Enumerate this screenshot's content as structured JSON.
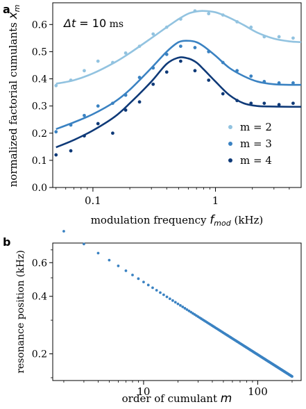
{
  "chart_data": [
    {
      "panel_label": "a",
      "type": "scatter",
      "annotation": "Δt = 10 ms",
      "annotation_parts": {
        "symbol": "Δt",
        "equals": " = 10",
        "unit": " ms"
      },
      "xlabel_text": "modulation frequency ",
      "xlabel_symbol": "f",
      "xlabel_sub": "mod",
      "xlabel_unit": " (kHz)",
      "ylabel_text": "normalized factorial cumulants ",
      "ylabel_symbol": "x",
      "ylabel_sub": "m",
      "xscale": "log",
      "xlim": [
        0.047,
        5.0
      ],
      "ylim": [
        0.0,
        0.68
      ],
      "x_ticks": [
        0.1,
        1
      ],
      "x_tick_labels": [
        "0.1",
        "1"
      ],
      "y_ticks": [
        0.0,
        0.1,
        0.2,
        0.3,
        0.4,
        0.5,
        0.6
      ],
      "y_tick_labels": [
        "0.0",
        "0.1",
        "0.2",
        "0.3",
        "0.4",
        "0.5",
        "0.6"
      ],
      "legend_position": "bottom-right",
      "series": [
        {
          "name": "m = 2",
          "color": "#92c3e0",
          "points": {
            "x": [
              0.05,
              0.066,
              0.085,
              0.11,
              0.145,
              0.185,
              0.24,
              0.31,
              0.4,
              0.52,
              0.68,
              0.88,
              1.15,
              1.5,
              1.95,
              2.5,
              3.3,
              4.3
            ],
            "y": [
              0.375,
              0.395,
              0.43,
              0.465,
              0.46,
              0.495,
              0.52,
              0.565,
              0.59,
              0.62,
              0.65,
              0.64,
              0.635,
              0.61,
              0.59,
              0.555,
              0.555,
              0.55
            ]
          },
          "curve": {
            "x": [
              0.05,
              0.07,
              0.1,
              0.15,
              0.2,
              0.3,
              0.4,
              0.5,
              0.6,
              0.7,
              0.8,
              1.0,
              1.3,
              1.7,
              2.2,
              3.0,
              4.0,
              5.0
            ],
            "y": [
              0.382,
              0.395,
              0.42,
              0.46,
              0.495,
              0.55,
              0.59,
              0.62,
              0.64,
              0.648,
              0.65,
              0.645,
              0.625,
              0.598,
              0.57,
              0.548,
              0.538,
              0.535
            ]
          }
        },
        {
          "name": "m = 3",
          "color": "#3a82c2",
          "points": {
            "x": [
              0.05,
              0.066,
              0.085,
              0.11,
              0.145,
              0.185,
              0.24,
              0.31,
              0.4,
              0.52,
              0.68,
              0.88,
              1.15,
              1.5,
              1.95,
              2.5,
              3.3,
              4.3
            ],
            "y": [
              0.205,
              0.23,
              0.265,
              0.3,
              0.31,
              0.34,
              0.405,
              0.44,
              0.49,
              0.52,
              0.515,
              0.5,
              0.46,
              0.43,
              0.41,
              0.39,
              0.385,
              0.385
            ]
          },
          "curve": {
            "x": [
              0.05,
              0.07,
              0.1,
              0.15,
              0.2,
              0.3,
              0.4,
              0.5,
              0.6,
              0.7,
              0.8,
              1.0,
              1.3,
              1.7,
              2.2,
              3.0,
              4.0,
              5.0
            ],
            "y": [
              0.215,
              0.24,
              0.27,
              0.315,
              0.36,
              0.44,
              0.5,
              0.535,
              0.54,
              0.535,
              0.52,
              0.485,
              0.44,
              0.41,
              0.39,
              0.38,
              0.378,
              0.378
            ]
          }
        },
        {
          "name": "m = 4",
          "color": "#0f3a78",
          "points": {
            "x": [
              0.05,
              0.066,
              0.085,
              0.11,
              0.145,
              0.185,
              0.24,
              0.31,
              0.4,
              0.52,
              0.68,
              0.88,
              1.15,
              1.5,
              1.95,
              2.5,
              3.3,
              4.3
            ],
            "y": [
              0.12,
              0.135,
              0.19,
              0.235,
              0.2,
              0.285,
              0.315,
              0.38,
              0.425,
              0.465,
              0.43,
              0.395,
              0.345,
              0.32,
              0.31,
              0.31,
              0.305,
              0.31
            ]
          },
          "curve": {
            "x": [
              0.05,
              0.07,
              0.1,
              0.15,
              0.2,
              0.3,
              0.4,
              0.5,
              0.6,
              0.7,
              0.8,
              1.0,
              1.3,
              1.7,
              2.2,
              3.0,
              4.0,
              5.0
            ],
            "y": [
              0.148,
              0.175,
              0.21,
              0.26,
              0.31,
              0.39,
              0.455,
              0.478,
              0.475,
              0.46,
              0.435,
              0.39,
              0.34,
              0.31,
              0.3,
              0.298,
              0.297,
              0.297
            ]
          }
        }
      ]
    },
    {
      "panel_label": "b",
      "type": "scatter",
      "xlabel_text": "order of cumulant ",
      "xlabel_symbol": "m",
      "ylabel": "resonance position (kHz)",
      "xscale": "log",
      "yscale": "log",
      "xlim": [
        1.6,
        240
      ],
      "ylim": [
        0.145,
        0.76
      ],
      "x_ticks": [
        10,
        100
      ],
      "x_tick_labels": [
        "10",
        "100"
      ],
      "y_ticks": [
        0.2,
        0.4,
        0.6
      ],
      "y_tick_labels": [
        "0.2",
        "0.4",
        "0.6"
      ],
      "color": "#3a82c2",
      "m_range": [
        2,
        200
      ],
      "model": {
        "coefficient_kHz": 1.14,
        "exponent": -0.38
      }
    }
  ]
}
